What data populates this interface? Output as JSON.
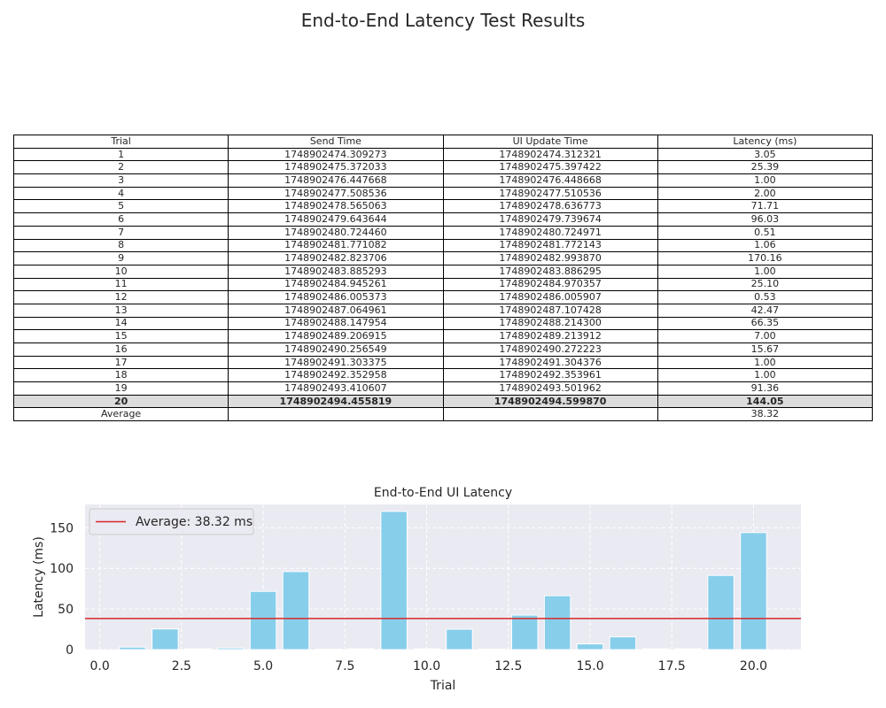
{
  "suptitle": "End-to-End Latency Test Results",
  "table": {
    "headers": [
      "Trial",
      "Send Time",
      "UI Update Time",
      "Latency (ms)"
    ],
    "rows": [
      [
        "1",
        "1748902474.309273",
        "1748902474.312321",
        "3.05"
      ],
      [
        "2",
        "1748902475.372033",
        "1748902475.397422",
        "25.39"
      ],
      [
        "3",
        "1748902476.447668",
        "1748902476.448668",
        "1.00"
      ],
      [
        "4",
        "1748902477.508536",
        "1748902477.510536",
        "2.00"
      ],
      [
        "5",
        "1748902478.565063",
        "1748902478.636773",
        "71.71"
      ],
      [
        "6",
        "1748902479.643644",
        "1748902479.739674",
        "96.03"
      ],
      [
        "7",
        "1748902480.724460",
        "1748902480.724971",
        "0.51"
      ],
      [
        "8",
        "1748902481.771082",
        "1748902481.772143",
        "1.06"
      ],
      [
        "9",
        "1748902482.823706",
        "1748902482.993870",
        "170.16"
      ],
      [
        "10",
        "1748902483.885293",
        "1748902483.886295",
        "1.00"
      ],
      [
        "11",
        "1748902484.945261",
        "1748902484.970357",
        "25.10"
      ],
      [
        "12",
        "1748902486.005373",
        "1748902486.005907",
        "0.53"
      ],
      [
        "13",
        "1748902487.064961",
        "1748902487.107428",
        "42.47"
      ],
      [
        "14",
        "1748902488.147954",
        "1748902488.214300",
        "66.35"
      ],
      [
        "15",
        "1748902489.206915",
        "1748902489.213912",
        "7.00"
      ],
      [
        "16",
        "1748902490.256549",
        "1748902490.272223",
        "15.67"
      ],
      [
        "17",
        "1748902491.303375",
        "1748902491.304376",
        "1.00"
      ],
      [
        "18",
        "1748902492.352958",
        "1748902492.353961",
        "1.00"
      ],
      [
        "19",
        "1748902493.410607",
        "1748902493.501962",
        "91.36"
      ],
      [
        "20",
        "1748902494.455819",
        "1748902494.599870",
        "144.05"
      ],
      [
        "Average",
        "",
        "",
        "38.32"
      ]
    ],
    "highlight_row_trial": "20"
  },
  "chart_data": {
    "type": "bar",
    "title": "End-to-End UI Latency",
    "xlabel": "Trial",
    "ylabel": "Latency (ms)",
    "x": [
      1,
      2,
      3,
      4,
      5,
      6,
      7,
      8,
      9,
      10,
      11,
      12,
      13,
      14,
      15,
      16,
      17,
      18,
      19,
      20
    ],
    "values": [
      3.05,
      25.39,
      1.0,
      2.0,
      71.71,
      96.03,
      0.51,
      1.06,
      170.16,
      1.0,
      25.1,
      0.53,
      42.47,
      66.35,
      7.0,
      15.67,
      1.0,
      1.0,
      91.36,
      144.05
    ],
    "xlim": [
      -0.45,
      21.45
    ],
    "ylim": [
      0,
      178.7
    ],
    "xticks": [
      0.0,
      2.5,
      5.0,
      7.5,
      10.0,
      12.5,
      15.0,
      17.5,
      20.0
    ],
    "yticks": [
      0,
      50,
      100,
      150
    ],
    "average": 38.32,
    "legend": {
      "label": "Average: 38.32 ms",
      "placement": "upper-left"
    },
    "grid": true,
    "colors": {
      "bar": "#87ceeb",
      "average_line": "#d62728",
      "plot_background": "#eaeaf2",
      "grid": "#ffffff"
    }
  }
}
